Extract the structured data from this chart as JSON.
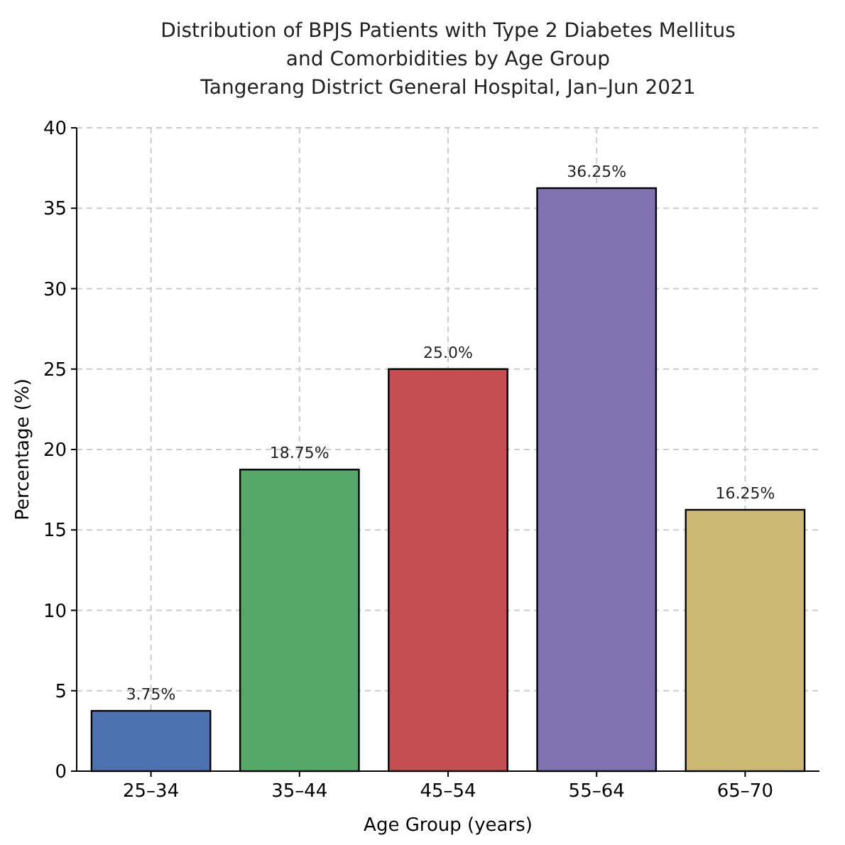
{
  "chart_data": {
    "type": "bar",
    "title": "Distribution of BPJS Patients with Type 2 Diabetes Mellitus\nand Comorbidities by Age Group\nTangerang District General Hospital, Jan–Jun 2021",
    "xlabel": "Age Group (years)",
    "ylabel": "Percentage (%)",
    "categories": [
      "25–34",
      "35–44",
      "45–54",
      "55–64",
      "65–70"
    ],
    "values": [
      3.75,
      18.75,
      25.0,
      36.25,
      16.25
    ],
    "colors": [
      "#4c72b0",
      "#55a868",
      "#c44e52",
      "#8172b2",
      "#ccb974"
    ],
    "value_labels": [
      "3.75%",
      "18.75%",
      "25.0%",
      "36.25%",
      "16.25%"
    ],
    "ylim": [
      0,
      40
    ],
    "yticks": [
      0,
      5,
      10,
      15,
      20,
      25,
      30,
      35,
      40
    ],
    "grid": true
  }
}
